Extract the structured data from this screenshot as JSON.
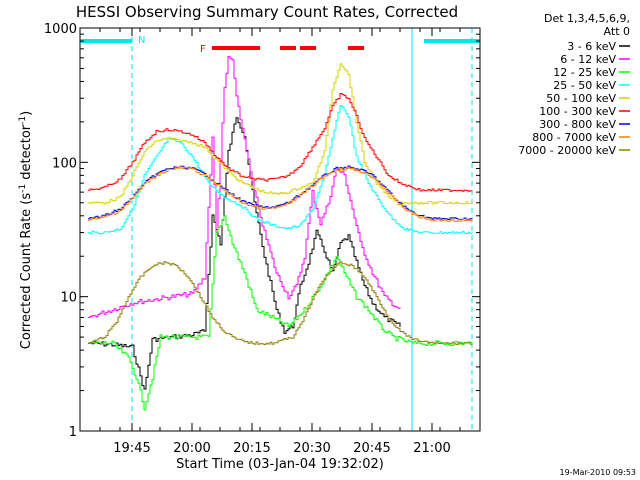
{
  "chart_data": {
    "type": "line",
    "title": "HESSI Observing Summary Count Rates, Corrected",
    "xlabel": "Start Time (03-Jan-04 19:32:02)",
    "ylabel": "Corrected Count Rate (s⁻¹ detector⁻¹)",
    "ylabel_parts": {
      "main": "Corrected Count Rate (s",
      "exp1": "-1",
      "mid": " detector",
      "exp2": "-1",
      "end": ")"
    },
    "y_scale": "log",
    "ylim": [
      1,
      1000
    ],
    "y_ticks": [
      {
        "value": 1,
        "label": "1"
      },
      {
        "value": 10,
        "label": "10"
      },
      {
        "value": 100,
        "label": "100"
      },
      {
        "value": 1000,
        "label": "1000"
      }
    ],
    "xlim": [
      "19:32",
      "21:12"
    ],
    "x_ticks": [
      {
        "time": "19:45",
        "label": "19:45"
      },
      {
        "time": "20:00",
        "label": "20:00"
      },
      {
        "time": "20:15",
        "label": "20:15"
      },
      {
        "time": "20:30",
        "label": "20:30"
      },
      {
        "time": "20:45",
        "label": "20:45"
      },
      {
        "time": "21:00",
        "label": "21:00"
      }
    ],
    "legend_placement": "top-right",
    "legend_header": [
      "Det 1,3,4,5,6,9,",
      "Att 0"
    ],
    "series": [
      {
        "name": "3 - 6 keV",
        "color": "#000000",
        "points": [
          [
            "19:34",
            4.5
          ],
          [
            "19:40",
            4.4
          ],
          [
            "19:45",
            4.2
          ],
          [
            "19:48",
            2.0
          ],
          [
            "19:50",
            4.8
          ],
          [
            "19:55",
            5.0
          ],
          [
            "20:00",
            5.2
          ],
          [
            "20:03",
            5.5
          ],
          [
            "20:05",
            40
          ],
          [
            "20:07",
            25
          ],
          [
            "20:09",
            120
          ],
          [
            "20:11",
            220
          ],
          [
            "20:13",
            160
          ],
          [
            "20:15",
            60
          ],
          [
            "20:18",
            20
          ],
          [
            "20:21",
            8
          ],
          [
            "20:23",
            5.5
          ],
          [
            "20:25",
            6
          ],
          [
            "20:27",
            12
          ],
          [
            "20:29",
            18
          ],
          [
            "20:31",
            30
          ],
          [
            "20:33",
            22
          ],
          [
            "20:35",
            15
          ],
          [
            "20:37",
            25
          ],
          [
            "20:39",
            28
          ],
          [
            "20:41",
            18
          ],
          [
            "20:43",
            12
          ],
          [
            "20:45",
            9
          ],
          [
            "20:48",
            7
          ],
          [
            "20:52",
            6
          ]
        ]
      },
      {
        "name": "6 - 12 keV",
        "color": "#ff00ff",
        "points": [
          [
            "19:34",
            7
          ],
          [
            "19:40",
            8
          ],
          [
            "19:45",
            9
          ],
          [
            "19:50",
            9.5
          ],
          [
            "19:55",
            10
          ],
          [
            "20:00",
            10.5
          ],
          [
            "20:03",
            14
          ],
          [
            "20:05",
            150
          ],
          [
            "20:06",
            30
          ],
          [
            "20:08",
            350
          ],
          [
            "20:09",
            600
          ],
          [
            "20:10",
            580
          ],
          [
            "20:11",
            300
          ],
          [
            "20:13",
            150
          ],
          [
            "20:15",
            70
          ],
          [
            "20:18",
            30
          ],
          [
            "20:21",
            15
          ],
          [
            "20:24",
            10
          ],
          [
            "20:26",
            12
          ],
          [
            "20:28",
            20
          ],
          [
            "20:30",
            60
          ],
          [
            "20:32",
            35
          ],
          [
            "20:34",
            50
          ],
          [
            "20:36",
            90
          ],
          [
            "20:38",
            80
          ],
          [
            "20:40",
            45
          ],
          [
            "20:42",
            25
          ],
          [
            "20:45",
            15
          ],
          [
            "20:48",
            10
          ],
          [
            "20:52",
            8
          ]
        ]
      },
      {
        "name": "12 - 25 keV",
        "color": "#00ff00",
        "points": [
          [
            "19:34",
            4.5
          ],
          [
            "19:40",
            4.5
          ],
          [
            "19:44",
            3.5
          ],
          [
            "19:46",
            2.5
          ],
          [
            "19:48",
            1.5
          ],
          [
            "19:50",
            2.5
          ],
          [
            "19:52",
            5
          ],
          [
            "19:55",
            5
          ],
          [
            "20:00",
            5
          ],
          [
            "20:04",
            5
          ],
          [
            "20:06",
            30
          ],
          [
            "20:08",
            40
          ],
          [
            "20:10",
            25
          ],
          [
            "20:13",
            15
          ],
          [
            "20:16",
            8
          ],
          [
            "20:20",
            7
          ],
          [
            "20:24",
            6
          ],
          [
            "20:28",
            8
          ],
          [
            "20:32",
            12
          ],
          [
            "20:36",
            20
          ],
          [
            "20:38",
            15
          ],
          [
            "20:41",
            10
          ],
          [
            "20:44",
            8
          ],
          [
            "20:47",
            6
          ],
          [
            "20:50",
            5
          ],
          [
            "20:55",
            4.5
          ],
          [
            "21:00",
            4.5
          ],
          [
            "21:05",
            4.5
          ],
          [
            "21:10",
            4.5
          ]
        ]
      },
      {
        "name": "25 - 50 keV",
        "color": "#00ffff",
        "points": [
          [
            "19:34",
            30
          ],
          [
            "19:38",
            30
          ],
          [
            "19:42",
            32
          ],
          [
            "19:45",
            45
          ],
          [
            "19:48",
            80
          ],
          [
            "19:51",
            110
          ],
          [
            "19:54",
            150
          ],
          [
            "19:57",
            140
          ],
          [
            "20:00",
            110
          ],
          [
            "20:04",
            70
          ],
          [
            "20:08",
            55
          ],
          [
            "20:12",
            48
          ],
          [
            "20:16",
            38
          ],
          [
            "20:20",
            34
          ],
          [
            "20:24",
            32
          ],
          [
            "20:27",
            34
          ],
          [
            "20:30",
            45
          ],
          [
            "20:33",
            80
          ],
          [
            "20:35",
            150
          ],
          [
            "20:37",
            270
          ],
          [
            "20:39",
            220
          ],
          [
            "20:41",
            110
          ],
          [
            "20:44",
            70
          ],
          [
            "20:47",
            50
          ],
          [
            "20:50",
            38
          ],
          [
            "20:53",
            32
          ],
          [
            "20:57",
            30
          ],
          [
            "21:00",
            30
          ],
          [
            "21:05",
            30
          ],
          [
            "21:10",
            30
          ]
        ]
      },
      {
        "name": "50 - 100 keV",
        "color": "#d4d400",
        "points": [
          [
            "19:34",
            50
          ],
          [
            "19:38",
            50
          ],
          [
            "19:42",
            55
          ],
          [
            "19:45",
            80
          ],
          [
            "19:48",
            120
          ],
          [
            "19:51",
            145
          ],
          [
            "19:54",
            150
          ],
          [
            "19:57",
            145
          ],
          [
            "20:00",
            140
          ],
          [
            "20:03",
            130
          ],
          [
            "20:06",
            105
          ],
          [
            "20:09",
            85
          ],
          [
            "20:12",
            72
          ],
          [
            "20:15",
            65
          ],
          [
            "20:18",
            60
          ],
          [
            "20:21",
            58
          ],
          [
            "20:24",
            60
          ],
          [
            "20:27",
            65
          ],
          [
            "20:30",
            70
          ],
          [
            "20:33",
            120
          ],
          [
            "20:35",
            350
          ],
          [
            "20:37",
            550
          ],
          [
            "20:39",
            450
          ],
          [
            "20:41",
            200
          ],
          [
            "20:43",
            100
          ],
          [
            "20:46",
            70
          ],
          [
            "20:49",
            55
          ],
          [
            "20:52",
            50
          ],
          [
            "20:57",
            50
          ],
          [
            "21:00",
            50
          ],
          [
            "21:05",
            50
          ],
          [
            "21:10",
            50
          ]
        ]
      },
      {
        "name": "100 - 300 keV",
        "color": "#ff0000",
        "points": [
          [
            "19:34",
            62
          ],
          [
            "19:38",
            65
          ],
          [
            "19:42",
            75
          ],
          [
            "19:45",
            100
          ],
          [
            "19:48",
            140
          ],
          [
            "19:51",
            170
          ],
          [
            "19:54",
            175
          ],
          [
            "19:57",
            170
          ],
          [
            "20:00",
            160
          ],
          [
            "20:03",
            140
          ],
          [
            "20:06",
            110
          ],
          [
            "20:09",
            90
          ],
          [
            "20:12",
            80
          ],
          [
            "20:15",
            75
          ],
          [
            "20:18",
            74
          ],
          [
            "20:21",
            75
          ],
          [
            "20:24",
            80
          ],
          [
            "20:27",
            95
          ],
          [
            "20:30",
            130
          ],
          [
            "20:33",
            180
          ],
          [
            "20:35",
            260
          ],
          [
            "20:37",
            320
          ],
          [
            "20:39",
            300
          ],
          [
            "20:41",
            220
          ],
          [
            "20:43",
            150
          ],
          [
            "20:46",
            110
          ],
          [
            "20:49",
            80
          ],
          [
            "20:52",
            70
          ],
          [
            "20:57",
            62
          ],
          [
            "21:00",
            62
          ],
          [
            "21:05",
            62
          ],
          [
            "21:10",
            62
          ]
        ]
      },
      {
        "name": "300 - 800 keV",
        "color": "#0000dd",
        "points": [
          [
            "19:34",
            38
          ],
          [
            "19:38",
            40
          ],
          [
            "19:42",
            45
          ],
          [
            "19:45",
            55
          ],
          [
            "19:48",
            70
          ],
          [
            "19:51",
            82
          ],
          [
            "19:54",
            90
          ],
          [
            "19:57",
            92
          ],
          [
            "20:00",
            90
          ],
          [
            "20:03",
            82
          ],
          [
            "20:06",
            70
          ],
          [
            "20:09",
            60
          ],
          [
            "20:12",
            52
          ],
          [
            "20:15",
            48
          ],
          [
            "20:18",
            46
          ],
          [
            "20:21",
            47
          ],
          [
            "20:24",
            50
          ],
          [
            "20:27",
            58
          ],
          [
            "20:30",
            68
          ],
          [
            "20:33",
            80
          ],
          [
            "20:36",
            90
          ],
          [
            "20:39",
            92
          ],
          [
            "20:42",
            88
          ],
          [
            "20:45",
            80
          ],
          [
            "20:48",
            65
          ],
          [
            "20:51",
            52
          ],
          [
            "20:54",
            44
          ],
          [
            "20:57",
            40
          ],
          [
            "21:00",
            38
          ],
          [
            "21:05",
            38
          ],
          [
            "21:10",
            38
          ]
        ]
      },
      {
        "name": "800 - 7000 keV",
        "color": "#ff8000",
        "points": [
          [
            "19:34",
            37
          ],
          [
            "19:38",
            39
          ],
          [
            "19:42",
            44
          ],
          [
            "19:45",
            54
          ],
          [
            "19:48",
            69
          ],
          [
            "19:51",
            80
          ],
          [
            "19:54",
            88
          ],
          [
            "19:57",
            91
          ],
          [
            "20:00",
            89
          ],
          [
            "20:03",
            80
          ],
          [
            "20:06",
            69
          ],
          [
            "20:09",
            59
          ],
          [
            "20:12",
            51
          ],
          [
            "20:15",
            47
          ],
          [
            "20:18",
            45
          ],
          [
            "20:21",
            46
          ],
          [
            "20:24",
            49
          ],
          [
            "20:27",
            57
          ],
          [
            "20:30",
            67
          ],
          [
            "20:33",
            79
          ],
          [
            "20:36",
            88
          ],
          [
            "20:39",
            90
          ],
          [
            "20:42",
            86
          ],
          [
            "20:45",
            78
          ],
          [
            "20:48",
            64
          ],
          [
            "20:51",
            51
          ],
          [
            "20:54",
            43
          ],
          [
            "20:57",
            39
          ],
          [
            "21:00",
            37
          ],
          [
            "21:05",
            37
          ],
          [
            "21:10",
            37
          ]
        ]
      },
      {
        "name": "7000 - 20000 keV",
        "color": "#8b8000",
        "points": [
          [
            "19:34",
            4.5
          ],
          [
            "19:38",
            5
          ],
          [
            "19:41",
            6.5
          ],
          [
            "19:44",
            10
          ],
          [
            "19:47",
            14
          ],
          [
            "19:50",
            17
          ],
          [
            "19:53",
            18
          ],
          [
            "19:56",
            17
          ],
          [
            "19:59",
            14
          ],
          [
            "20:02",
            10
          ],
          [
            "20:05",
            7
          ],
          [
            "20:08",
            5.5
          ],
          [
            "20:11",
            4.8
          ],
          [
            "20:15",
            4.5
          ],
          [
            "20:20",
            4.5
          ],
          [
            "20:25",
            5
          ],
          [
            "20:28",
            7
          ],
          [
            "20:31",
            11
          ],
          [
            "20:34",
            15
          ],
          [
            "20:37",
            18
          ],
          [
            "20:40",
            17
          ],
          [
            "20:43",
            14
          ],
          [
            "20:46",
            10
          ],
          [
            "20:49",
            7
          ],
          [
            "20:52",
            5.5
          ],
          [
            "20:55",
            4.8
          ],
          [
            "21:00",
            4.5
          ],
          [
            "21:05",
            4.5
          ],
          [
            "21:10",
            4.5
          ]
        ]
      }
    ],
    "annotations": {
      "night_marker_label": "N",
      "night_intervals": [
        [
          "19:32",
          "19:45"
        ],
        [
          "20:58",
          "21:12"
        ]
      ],
      "saa_boundaries": [
        "19:45",
        "20:55",
        "21:10"
      ],
      "flare_flag_label": "F",
      "flare_intervals": [
        [
          "20:05",
          "20:17"
        ],
        [
          "20:22",
          "20:26"
        ],
        [
          "20:27",
          "20:31"
        ],
        [
          "20:39",
          "20:43"
        ]
      ]
    },
    "footer_timestamp": "19-Mar-2010 09:53"
  }
}
